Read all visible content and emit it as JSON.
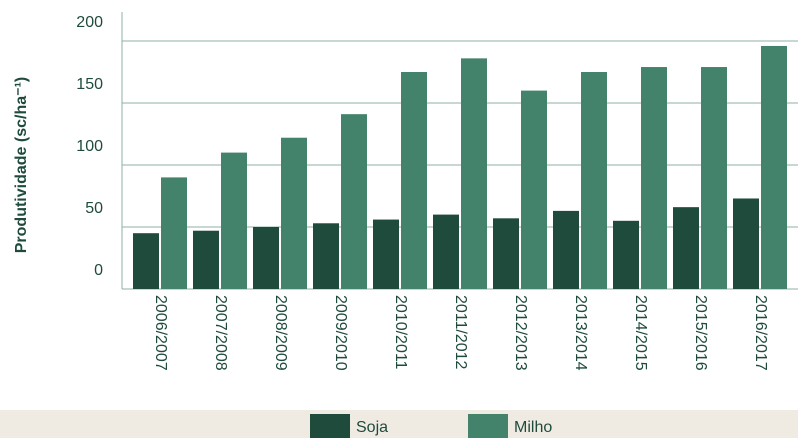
{
  "chart_data": {
    "type": "bar",
    "ylabel": "Produtividade (sc/ha⁻¹)",
    "categories": [
      "2006/2007",
      "2007/2008",
      "2008/2009",
      "2009/2010",
      "2010/2011",
      "2011/2012",
      "2012/2013",
      "2013/2014",
      "2014/2015",
      "2015/2016",
      "2016/2017"
    ],
    "series": [
      {
        "name": "Soja",
        "color": "#1e4b3b",
        "values": [
          45,
          47,
          50,
          53,
          56,
          60,
          57,
          63,
          55,
          66,
          73
        ]
      },
      {
        "name": "Milho",
        "color": "#43826b",
        "values": [
          90,
          110,
          122,
          141,
          175,
          186,
          160,
          175,
          179,
          179,
          196
        ]
      }
    ],
    "ylim": [
      0,
      200
    ],
    "yticks": [
      0,
      50,
      100,
      150,
      200
    ],
    "grid": true,
    "legend": "bottom"
  }
}
